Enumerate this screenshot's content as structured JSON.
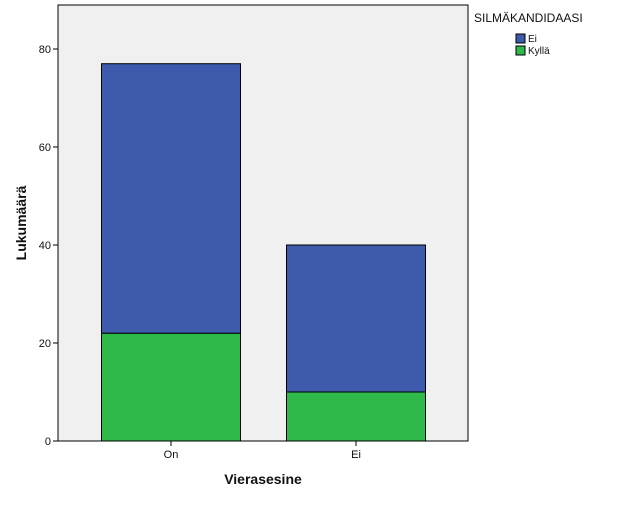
{
  "chart_data": {
    "type": "bar",
    "stacked": true,
    "categories": [
      "On",
      "Ei"
    ],
    "series": [
      {
        "name": "Kyllä",
        "values": [
          22,
          10
        ],
        "color": "#2fb94a"
      },
      {
        "name": "Ei",
        "values": [
          55,
          30
        ],
        "color": "#3d5aad"
      }
    ],
    "xlabel": "Vierasesine",
    "ylabel": "Lukumäärä",
    "ylim": [
      0,
      88
    ],
    "yticks": [
      0,
      20,
      40,
      60,
      80
    ],
    "legend": {
      "title": "SILMÄKANDIDAASI",
      "order": [
        "Ei",
        "Kyllä"
      ],
      "placement": "right"
    },
    "grid": false,
    "plot_background": "#f0f0f0",
    "bar_outline": "#000000"
  }
}
